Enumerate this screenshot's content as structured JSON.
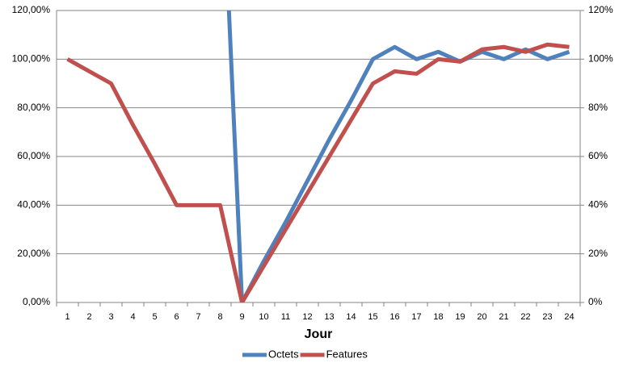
{
  "chart_data": {
    "type": "line",
    "x_label": "Jour",
    "categories": [
      "1",
      "2",
      "3",
      "4",
      "5",
      "6",
      "7",
      "8",
      "9",
      "10",
      "11",
      "12",
      "13",
      "14",
      "15",
      "16",
      "17",
      "18",
      "19",
      "20",
      "21",
      "22",
      "23",
      "24"
    ],
    "series": [
      {
        "name": "Octets",
        "color": "#4f81bd",
        "values": [
          null,
          null,
          null,
          null,
          null,
          null,
          null,
          200,
          0,
          17,
          33,
          50,
          67,
          83,
          100,
          105,
          100,
          103,
          99,
          103,
          100,
          104,
          100,
          103
        ]
      },
      {
        "name": "Features",
        "color": "#c0504d",
        "values": [
          100,
          95,
          90,
          73,
          57,
          40,
          40,
          40,
          0,
          15,
          30,
          45,
          60,
          75,
          90,
          95,
          94,
          100,
          99,
          104,
          105,
          103,
          106,
          105
        ]
      }
    ],
    "ylim": [
      0,
      120
    ],
    "yticks": [
      {
        "value": 0,
        "label": "0,00%"
      },
      {
        "value": 20,
        "label": "20,00%"
      },
      {
        "value": 40,
        "label": "40,00%"
      },
      {
        "value": 60,
        "label": "60,00%"
      },
      {
        "value": 80,
        "label": "80,00%"
      },
      {
        "value": 100,
        "label": "100,00%"
      },
      {
        "value": 120,
        "label": "120,00%"
      }
    ],
    "y2lim": [
      0,
      120
    ],
    "y2ticks": [
      {
        "value": 0,
        "label": "0%"
      },
      {
        "value": 20,
        "label": "20%"
      },
      {
        "value": 40,
        "label": "40%"
      },
      {
        "value": 60,
        "label": "60%"
      },
      {
        "value": 80,
        "label": "80%"
      },
      {
        "value": 100,
        "label": "100%"
      },
      {
        "value": 120,
        "label": "120%"
      }
    ],
    "grid": true,
    "legend": "bottom"
  }
}
